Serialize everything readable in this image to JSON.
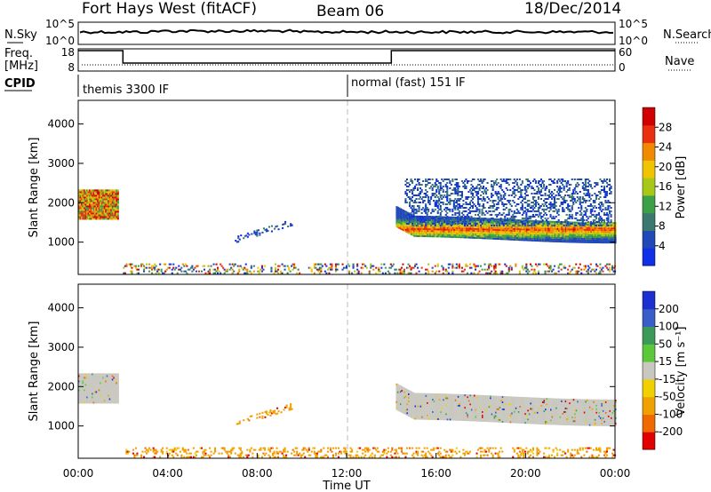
{
  "header": {
    "title": "Fort Hays West (fitACF)",
    "beam": "Beam 06",
    "date": "18/Dec/2014"
  },
  "status_panels": {
    "nsky_label": "N.Sky",
    "nsearch_label": "N.Search",
    "freq_label_top": "Freq.",
    "freq_label_unit": "[MHz]",
    "nave_label": "Nave",
    "cpid_label": "CPID",
    "noise_ticks": [
      "10^5",
      "10^0"
    ],
    "freq_ticks": [
      "18",
      "8"
    ],
    "nave_ticks": [
      "60",
      "0"
    ],
    "cpid_segments": [
      {
        "start_hour": 0,
        "label": "themis 3300 IF"
      },
      {
        "start_hour": 12,
        "label": "normal (fast) 151 IF"
      }
    ],
    "freq_trace": [
      {
        "start_hour": 0,
        "end_hour": 2,
        "level": "high"
      },
      {
        "start_hour": 2,
        "end_hour": 14,
        "level": "low"
      },
      {
        "start_hour": 14,
        "end_hour": 24,
        "level": "high"
      }
    ]
  },
  "chart_data": [
    {
      "type": "heatmap",
      "name": "power",
      "ylabel": "Slant Range [km]",
      "xlim": [
        0,
        24
      ],
      "ylim": [
        180,
        4600
      ],
      "yticks": [
        1000,
        2000,
        3000,
        4000
      ],
      "colorbar": {
        "label": "Power [dB]",
        "ticks": [
          "4",
          "8",
          "12",
          "16",
          "20",
          "24",
          "28"
        ],
        "colors": [
          "#1030e8",
          "#2048b8",
          "#3a7870",
          "#3ca048",
          "#a8c818",
          "#f0c400",
          "#f08a00",
          "#e83010",
          "#d00000"
        ]
      },
      "features": [
        {
          "desc": "band",
          "t0": 0.0,
          "t1": 1.8,
          "r_center": 1950,
          "r_half": 380,
          "color": "power-high"
        },
        {
          "desc": "band",
          "t0": 14.2,
          "t1": 24.0,
          "r_center": 1300,
          "r_half": 250,
          "color": "power-mid"
        },
        {
          "desc": "streaks",
          "t0": 14.6,
          "t1": 23.8,
          "r_low": 1400,
          "r_high": 2600,
          "color": "power-low"
        },
        {
          "desc": "arc",
          "t0": 7.0,
          "t1": 9.6,
          "r_low": 1050,
          "r_high": 1500,
          "color": "power-low"
        },
        {
          "desc": "ground",
          "t0": 2.0,
          "t1": 24.0,
          "r_low": 190,
          "r_high": 420,
          "color": "mixed"
        }
      ]
    },
    {
      "type": "heatmap",
      "name": "velocity",
      "ylabel": "Slant Range [km]",
      "xlabel": "Time UT",
      "xlim": [
        0,
        24
      ],
      "ylim": [
        180,
        4600
      ],
      "yticks": [
        1000,
        2000,
        3000,
        4000
      ],
      "xticks": [
        "00:00",
        "04:00",
        "08:00",
        "12:00",
        "16:00",
        "20:00",
        "00:00"
      ],
      "colorbar": {
        "label": "Velocity [m s⁻¹]",
        "ticks": [
          "200",
          "100",
          "50",
          "15",
          "-15",
          "-50",
          "-100",
          "-200"
        ],
        "colors": [
          "#1c30d0",
          "#3a5ec8",
          "#3c9a58",
          "#5ac838",
          "#c8c8c0",
          "#f0d000",
          "#f0a000",
          "#f06800",
          "#e00000"
        ]
      },
      "features": [
        {
          "desc": "band",
          "t0": 0.0,
          "t1": 1.8,
          "r_center": 1950,
          "r_half": 380,
          "color": "vel-grey"
        },
        {
          "desc": "band",
          "t0": 14.2,
          "t1": 24.0,
          "r_center": 1400,
          "r_half": 320,
          "color": "vel-grey"
        },
        {
          "desc": "arc",
          "t0": 7.0,
          "t1": 9.6,
          "r_low": 1050,
          "r_high": 1500,
          "color": "vel-orange"
        },
        {
          "desc": "ground",
          "t0": 2.0,
          "t1": 24.0,
          "r_low": 190,
          "r_high": 420,
          "color": "vel-orange"
        }
      ]
    }
  ]
}
